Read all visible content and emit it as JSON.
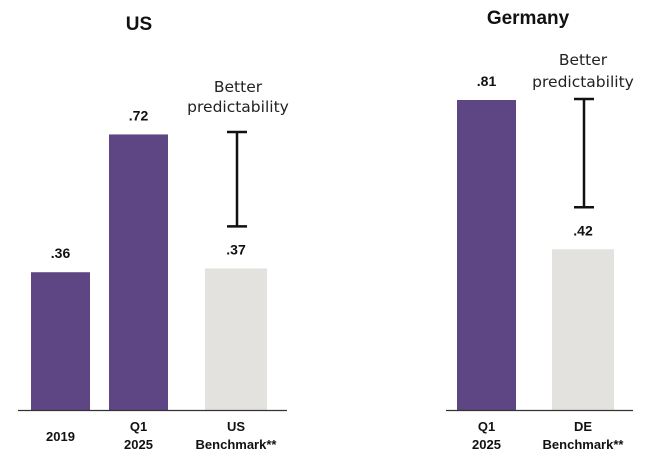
{
  "chart_data": [
    {
      "type": "bar",
      "title": "US",
      "categories": [
        [
          "2019"
        ],
        [
          "Q1",
          "2025"
        ],
        [
          "US",
          "Benchmark**"
        ]
      ],
      "values": [
        0.36,
        0.72,
        0.37
      ],
      "value_labels": [
        ".36",
        ".72",
        ".37"
      ],
      "bar_colors": [
        "#5e4583",
        "#5e4583",
        "#e3e2de"
      ],
      "ylim": [
        0,
        0.81
      ],
      "annotation": {
        "lines": [
          "Better",
          "predictability"
        ],
        "range": [
          0.37,
          0.81
        ],
        "between_bar": 2
      }
    },
    {
      "type": "bar",
      "title": "Germany",
      "categories": [
        [
          "Q1",
          "2025"
        ],
        [
          "DE",
          "Benchmark**"
        ]
      ],
      "values": [
        0.81,
        0.42
      ],
      "value_labels": [
        ".81",
        ".42"
      ],
      "bar_colors": [
        "#5e4583",
        "#e3e2de"
      ],
      "ylim": [
        0,
        0.81
      ],
      "annotation": {
        "lines": [
          "Better",
          "predictability"
        ],
        "range": [
          0.42,
          0.81
        ],
        "between_bar": 1
      }
    }
  ]
}
